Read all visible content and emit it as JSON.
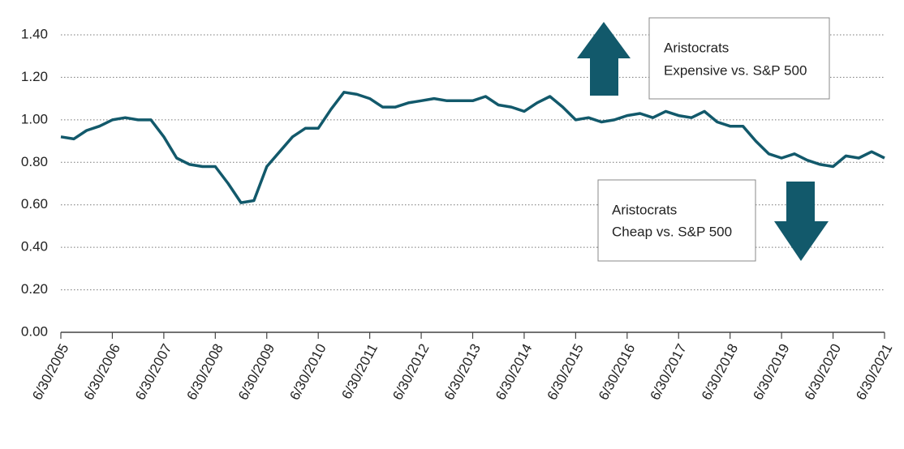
{
  "chart_data": {
    "type": "line",
    "categories": [
      "6/30/2005",
      null,
      null,
      null,
      "6/30/2006",
      null,
      null,
      null,
      "6/30/2007",
      null,
      null,
      null,
      "6/30/2008",
      null,
      null,
      null,
      "6/30/2009",
      null,
      null,
      null,
      "6/30/2010",
      null,
      null,
      null,
      "6/30/2011",
      null,
      null,
      null,
      "6/30/2012",
      null,
      null,
      null,
      "6/30/2013",
      null,
      null,
      null,
      "6/30/2014",
      null,
      null,
      null,
      "6/30/2015",
      null,
      null,
      null,
      "6/30/2016",
      null,
      null,
      null,
      "6/30/2017",
      null,
      null,
      null,
      "6/30/2018",
      null,
      null,
      null,
      "6/30/2019",
      null,
      null,
      null,
      "6/30/2020",
      null,
      null,
      null,
      "6/30/2021"
    ],
    "values": [
      0.92,
      0.91,
      0.95,
      0.97,
      1.0,
      1.01,
      1.0,
      1.0,
      0.92,
      0.82,
      0.79,
      0.78,
      0.78,
      0.7,
      0.61,
      0.62,
      0.78,
      0.85,
      0.92,
      0.96,
      0.96,
      1.05,
      1.13,
      1.12,
      1.1,
      1.06,
      1.06,
      1.08,
      1.09,
      1.1,
      1.09,
      1.09,
      1.09,
      1.11,
      1.07,
      1.06,
      1.04,
      1.08,
      1.11,
      1.06,
      1.0,
      1.01,
      0.99,
      1.0,
      1.02,
      1.03,
      1.01,
      1.04,
      1.02,
      1.01,
      1.04,
      0.99,
      0.97,
      0.97,
      0.9,
      0.84,
      0.82,
      0.84,
      0.81,
      0.79,
      0.78,
      0.83,
      0.82,
      0.85,
      0.82
    ],
    "color": "#12596b",
    "ylim": [
      0,
      1.4
    ],
    "yticks": [
      {
        "value": 0,
        "label": "0.00"
      },
      {
        "value": 0.2,
        "label": "0.20"
      },
      {
        "value": 0.4,
        "label": "0.40"
      },
      {
        "value": 0.6,
        "label": "0.60"
      },
      {
        "value": 0.8,
        "label": "0.80"
      },
      {
        "value": 1.0,
        "label": "1.00"
      },
      {
        "value": 1.2,
        "label": "1.20"
      },
      {
        "value": 1.4,
        "label": "1.40"
      }
    ],
    "grid": true,
    "annotations": [
      {
        "lines": [
          "Aristocrats",
          "Expensive vs. S&P 500"
        ]
      },
      {
        "lines": [
          "Aristocrats",
          "Cheap vs. S&P 500"
        ]
      }
    ]
  }
}
